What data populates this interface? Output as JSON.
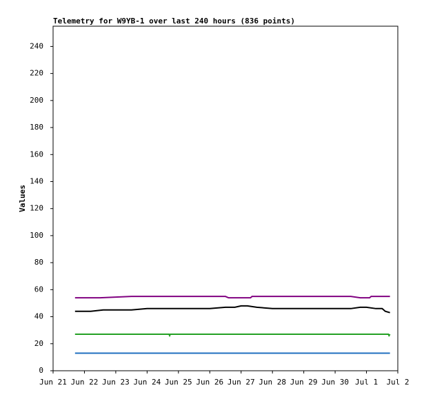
{
  "chart_data": {
    "type": "line",
    "title": "Telemetry for W9YB-1 over last 240 hours (836 points)",
    "y_label": "Values",
    "xlim": [
      0,
      11
    ],
    "ylim": [
      0,
      255
    ],
    "xticks": [
      {
        "value": 0,
        "label": "Jun 21"
      },
      {
        "value": 1,
        "label": "Jun 22"
      },
      {
        "value": 2,
        "label": "Jun 23"
      },
      {
        "value": 3,
        "label": "Jun 24"
      },
      {
        "value": 4,
        "label": "Jun 25"
      },
      {
        "value": 5,
        "label": "Jun 26"
      },
      {
        "value": 6,
        "label": "Jun 27"
      },
      {
        "value": 7,
        "label": "Jun 28"
      },
      {
        "value": 8,
        "label": "Jun 29"
      },
      {
        "value": 9,
        "label": "Jun 30"
      },
      {
        "value": 10,
        "label": "Jul 1"
      },
      {
        "value": 11,
        "label": "Jul 2"
      }
    ],
    "yticks": [
      0,
      20,
      40,
      60,
      80,
      100,
      120,
      140,
      160,
      180,
      200,
      220,
      240
    ],
    "grid": false,
    "series": [
      {
        "color": "#1f6fbf",
        "x": [
          0.7,
          10.75
        ],
        "values": [
          13,
          13
        ]
      },
      {
        "color": "#22a022",
        "x": [
          0.7,
          3.7,
          3.72,
          3.74,
          10.7,
          10.72,
          10.75
        ],
        "values": [
          27,
          27,
          26,
          27,
          27,
          26,
          27
        ]
      },
      {
        "color": "#800080",
        "x": [
          0.7,
          1.5,
          2.5,
          3.5,
          4.5,
          5.5,
          5.6,
          6.3,
          6.35,
          7.5,
          8.5,
          9.5,
          9.8,
          10.1,
          10.15,
          10.75
        ],
        "values": [
          54,
          54,
          55,
          55,
          55,
          55,
          54,
          54,
          55,
          55,
          55,
          55,
          54,
          54,
          55,
          55
        ]
      },
      {
        "color": "#000000",
        "x": [
          0.7,
          1.2,
          1.6,
          2.0,
          2.5,
          3.0,
          3.5,
          4.0,
          4.5,
          5.0,
          5.5,
          5.8,
          6.0,
          6.2,
          6.5,
          7.0,
          7.5,
          8.0,
          8.5,
          9.0,
          9.5,
          9.8,
          10.0,
          10.3,
          10.5,
          10.6,
          10.75
        ],
        "values": [
          44,
          44,
          45,
          45,
          45,
          46,
          46,
          46,
          46,
          46,
          47,
          47,
          48,
          48,
          47,
          46,
          46,
          46,
          46,
          46,
          46,
          47,
          47,
          46,
          46,
          44,
          43
        ]
      }
    ]
  }
}
